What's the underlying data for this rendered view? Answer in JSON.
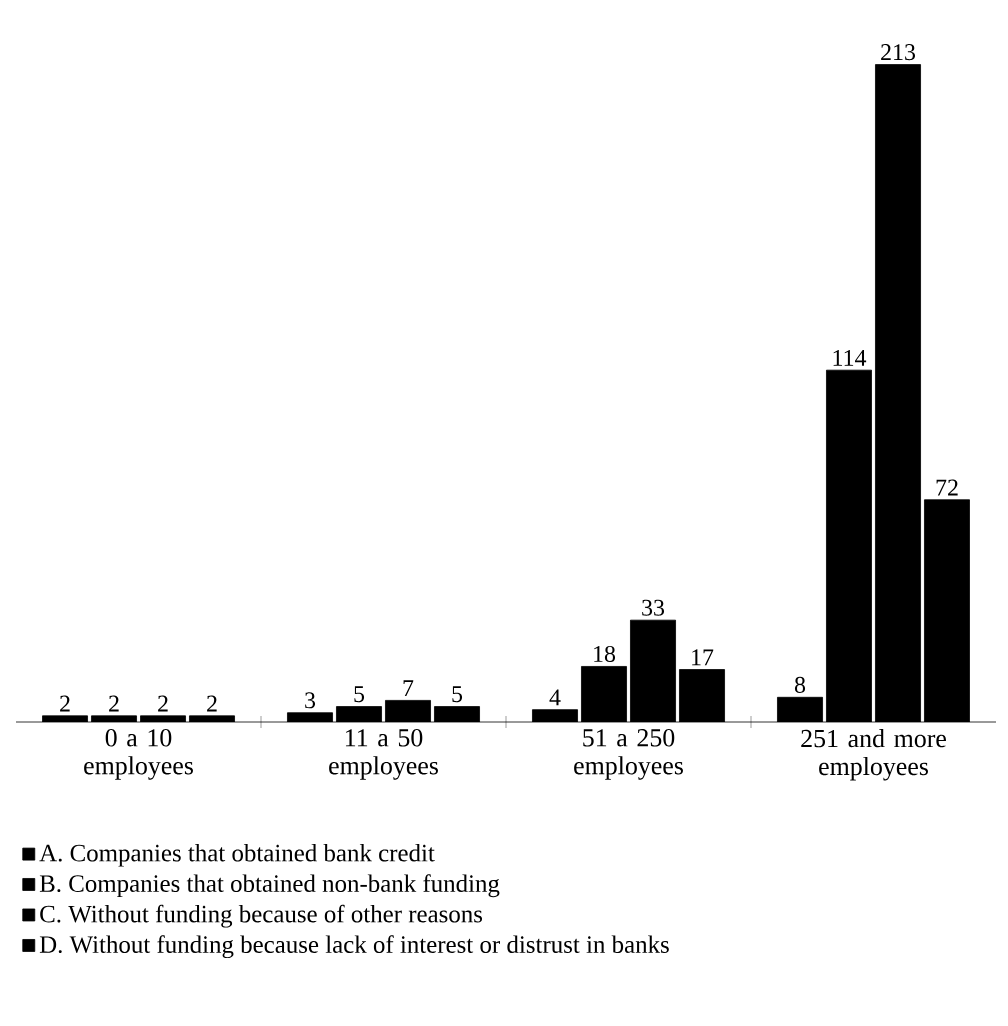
{
  "chart_data": {
    "type": "bar",
    "categories": [
      "0 a 10 employees",
      "11 a 50 employees",
      "51 a 250 employees",
      "251 and more employees"
    ],
    "series": [
      {
        "name": "A. Companies that obtained bank credit",
        "color": "#000000",
        "values": [
          2,
          3,
          4,
          8
        ]
      },
      {
        "name": "B. Companies that obtained non-bank funding",
        "color": "#000000",
        "values": [
          2,
          5,
          18,
          114
        ]
      },
      {
        "name": "C. Without funding because of other reasons",
        "color": "#000000",
        "values": [
          2,
          7,
          33,
          213
        ]
      },
      {
        "name": "D. Without funding because lack of interest or distrust in banks",
        "color": "#000000",
        "values": [
          2,
          5,
          17,
          72
        ]
      }
    ],
    "data_labels": true,
    "legend": "bottom"
  }
}
